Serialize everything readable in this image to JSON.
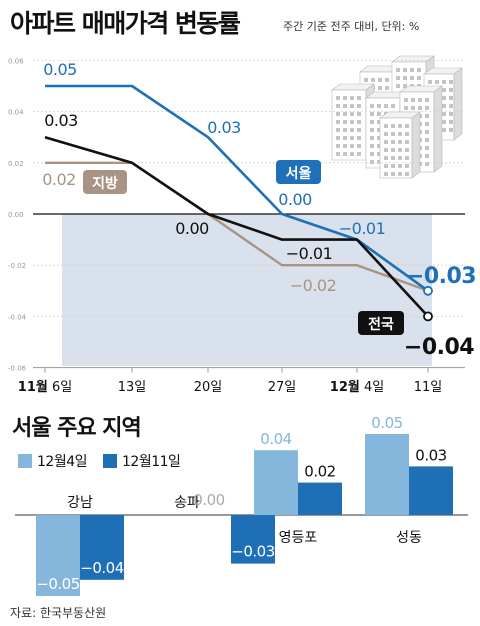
{
  "header": {
    "title": "아파트 매매가격 변동률",
    "subtitle": "주간 기준 전주 대비, 단위: %"
  },
  "section2_title": "서울 주요 지역",
  "source": "자료: 한국부동산원",
  "colors": {
    "seoul": "#1e70b8",
    "national": "#111111",
    "local": "#a89484",
    "bar_light": "#85b6dc",
    "bar_dark": "#1e6fb5",
    "negative_band": "#d9e1ec"
  },
  "illustration": "apartment-buildings-icon",
  "chart_data": [
    {
      "type": "line",
      "x": [
        "11월 6일",
        "13일",
        "20일",
        "27일",
        "12월 4일",
        "11일"
      ],
      "x_ticks": [
        {
          "bold": "11월",
          "rest": " 6일"
        },
        {
          "bold": "",
          "rest": "13일"
        },
        {
          "bold": "",
          "rest": "20일"
        },
        {
          "bold": "",
          "rest": "27일"
        },
        {
          "bold": "12월",
          "rest": " 4일"
        },
        {
          "bold": "",
          "rest": "11일"
        }
      ],
      "ylim": [
        -0.06,
        0.06
      ],
      "y_ticks": [
        "0.06",
        "0.04",
        "0.02",
        "0.00",
        "-0.02",
        "-0.04",
        "-0.06"
      ],
      "series": [
        {
          "name": "서울",
          "values": [
            0.05,
            0.05,
            0.03,
            0.0,
            -0.01,
            -0.03
          ],
          "labels": [
            "0.05",
            "",
            "0.03",
            "0.00",
            "−0.01",
            "−0.03"
          ]
        },
        {
          "name": "전국",
          "values": [
            0.03,
            0.02,
            0.0,
            -0.01,
            -0.01,
            -0.04
          ],
          "labels": [
            "0.03",
            "",
            "0.00",
            "−0.01",
            "",
            "−0.04"
          ]
        },
        {
          "name": "지방",
          "values": [
            0.02,
            0.02,
            0.0,
            -0.02,
            -0.02,
            -0.03
          ],
          "labels": [
            "0.02",
            "",
            "",
            "−0.02",
            "",
            ""
          ]
        }
      ]
    },
    {
      "type": "bar",
      "categories": [
        "강남",
        "송파",
        "영등포",
        "성동"
      ],
      "series": [
        {
          "name": "12월4일",
          "values": [
            -0.05,
            0.0,
            0.04,
            0.05
          ],
          "labels": [
            "−0.05",
            "0.00",
            "0.04",
            "0.05"
          ]
        },
        {
          "name": "12월11일",
          "values": [
            -0.04,
            -0.03,
            0.02,
            0.03
          ],
          "labels": [
            "−0.04",
            "−0.03",
            "0.02",
            "0.03"
          ]
        }
      ]
    }
  ]
}
